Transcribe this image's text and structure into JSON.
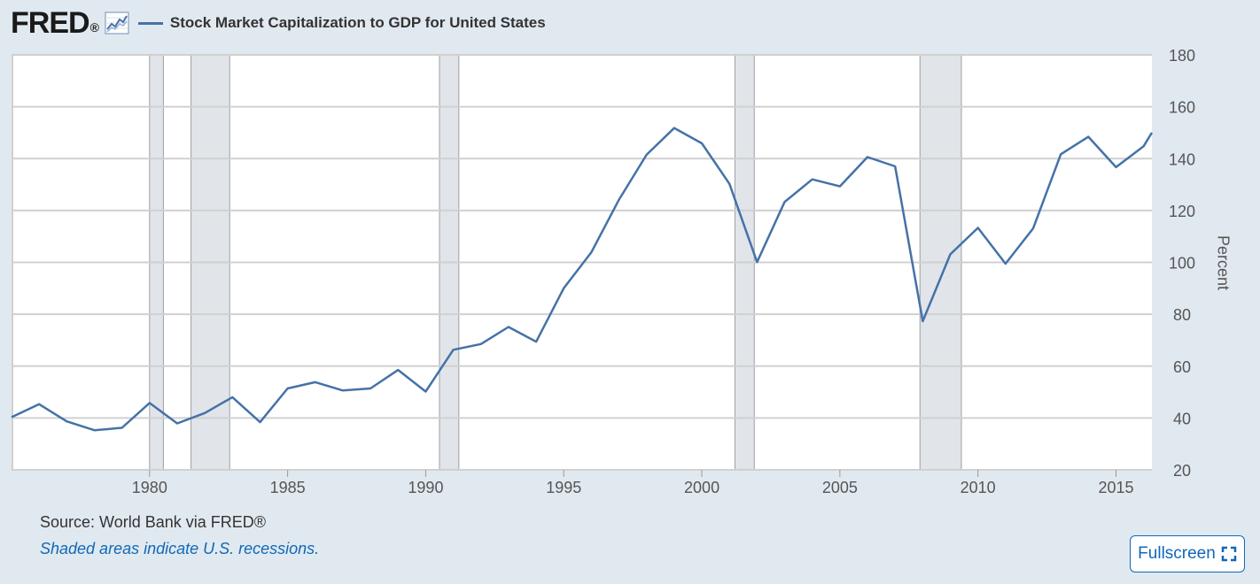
{
  "header": {
    "logo_text": "FRED",
    "logo_mark": "®",
    "graph_icon": "line-graph-icon",
    "title": "Stock Market Capitalization to GDP for United States"
  },
  "footer": {
    "source": "Source: World Bank via FRED®",
    "note": "Shaded areas indicate U.S. recessions.",
    "fullscreen_label": "Fullscreen",
    "fullscreen_icon": "expand-icon"
  },
  "colors": {
    "series": "#4572a7",
    "recession": "#e1e5ea",
    "background": "#e1e9f0",
    "link": "#1068b8"
  },
  "chart_data": {
    "type": "line",
    "title": "Stock Market Capitalization to GDP for United States",
    "ylabel": "Percent",
    "xlabel": "",
    "ylim": [
      20,
      180
    ],
    "xlim": [
      1975,
      2016.3
    ],
    "y_ticks": [
      20,
      40,
      60,
      80,
      100,
      120,
      140,
      160,
      180
    ],
    "x_ticks": [
      1980,
      1985,
      1990,
      1995,
      2000,
      2005,
      2010,
      2015
    ],
    "y_axis_side": "right",
    "grid": true,
    "recessions": [
      [
        1980.0,
        1980.5
      ],
      [
        1981.5,
        1982.9
      ],
      [
        1990.5,
        1991.2
      ],
      [
        2001.2,
        2001.9
      ],
      [
        2007.9,
        2009.4
      ]
    ],
    "series": [
      {
        "name": "Stock Market Capitalization to GDP for United States",
        "x": [
          1975,
          1976,
          1977,
          1978,
          1979,
          1980,
          1981,
          1982,
          1983,
          1984,
          1985,
          1986,
          1987,
          1988,
          1989,
          1990,
          1991,
          1992,
          1993,
          1994,
          1995,
          1996,
          1997,
          1998,
          1999,
          2000,
          2001,
          2002,
          2003,
          2004,
          2005,
          2006,
          2007,
          2008,
          2009,
          2010,
          2011,
          2012,
          2013,
          2014,
          2015,
          2016,
          2016.3
        ],
        "y": [
          40.3,
          45.3,
          38.7,
          35.3,
          36.2,
          45.8,
          37.9,
          41.9,
          48.0,
          38.4,
          51.4,
          53.8,
          50.6,
          51.4,
          58.5,
          50.2,
          66.3,
          68.5,
          75.1,
          69.4,
          90.0,
          103.9,
          124.2,
          141.5,
          151.8,
          145.9,
          130.3,
          100.1,
          123.3,
          132.0,
          129.3,
          140.6,
          137.0,
          77.3,
          103.1,
          113.3,
          99.5,
          113.1,
          141.7,
          148.4,
          136.7,
          144.8,
          150.0
        ]
      }
    ]
  }
}
